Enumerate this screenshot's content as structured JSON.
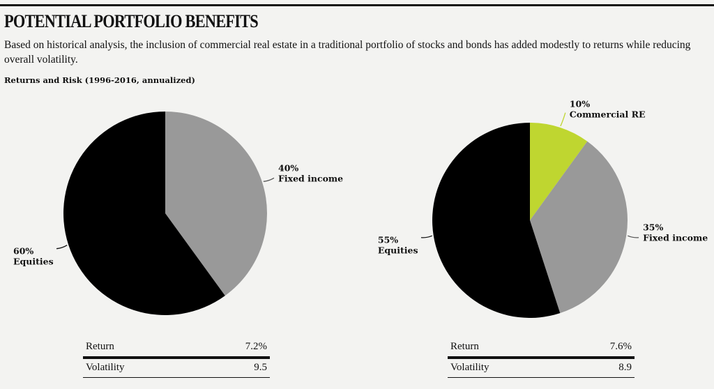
{
  "title": "POTENTIAL PORTFOLIO BENEFITS",
  "description": "Based on historical analysis, the inclusion of commercial real estate in a traditional portfolio of stocks and bonds has added modestly to returns while reducing overall volatility.",
  "section_label": "Returns and Risk (1996-2016, annualized)",
  "colors": {
    "equities": "#000000",
    "fixed_income": "#999999",
    "commercial_re": "#bfd630"
  },
  "chart_data": [
    {
      "type": "pie",
      "title": "",
      "slices": [
        {
          "label": "Fixed income",
          "percent_label": "40%",
          "value": 40,
          "color": "#999999"
        },
        {
          "label": "Equities",
          "percent_label": "60%",
          "value": 60,
          "color": "#000000"
        }
      ],
      "start_angle_deg": 0,
      "direction": "clockwise",
      "stats": [
        {
          "label": "Return",
          "value": "7.2%"
        },
        {
          "label": "Volatility",
          "value": "9.5"
        }
      ]
    },
    {
      "type": "pie",
      "title": "",
      "slices": [
        {
          "label": "Commercial RE",
          "percent_label": "10%",
          "value": 10,
          "color": "#bfd630"
        },
        {
          "label": "Fixed income",
          "percent_label": "35%",
          "value": 35,
          "color": "#999999"
        },
        {
          "label": "Equities",
          "percent_label": "55%",
          "value": 55,
          "color": "#000000"
        }
      ],
      "start_angle_deg": 0,
      "direction": "clockwise",
      "stats": [
        {
          "label": "Return",
          "value": "7.6%"
        },
        {
          "label": "Volatility",
          "value": "8.9"
        }
      ]
    }
  ]
}
